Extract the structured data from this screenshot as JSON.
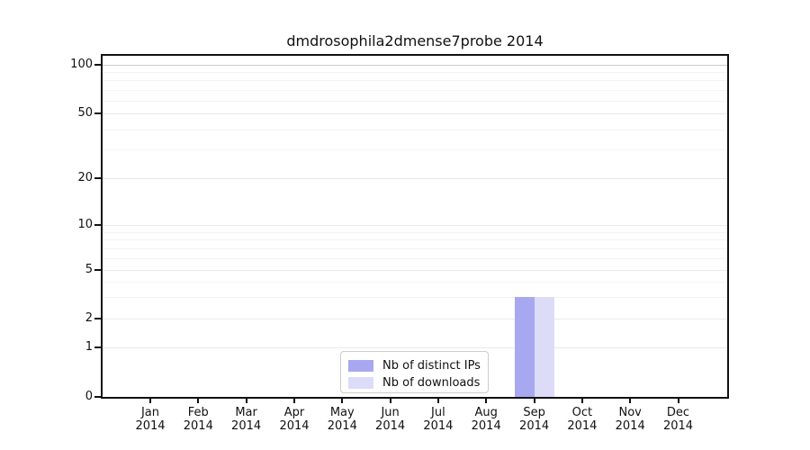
{
  "chart_data": {
    "type": "bar",
    "title": "dmdrosophila2dmense7probe 2014",
    "categories": [
      "Jan 2014",
      "Feb 2014",
      "Mar 2014",
      "Apr 2014",
      "May 2014",
      "Jun 2014",
      "Jul 2014",
      "Aug 2014",
      "Sep 2014",
      "Oct 2014",
      "Nov 2014",
      "Dec 2014"
    ],
    "series": [
      {
        "name": "Nb of distinct IPs",
        "color": "#a8a8f0",
        "values": [
          0,
          0,
          0,
          0,
          0,
          0,
          0,
          0,
          3,
          0,
          0,
          0
        ]
      },
      {
        "name": "Nb of downloads",
        "color": "#dcdcf8",
        "values": [
          0,
          0,
          0,
          0,
          0,
          0,
          0,
          0,
          3,
          0,
          0,
          0
        ]
      }
    ],
    "xlabel": "",
    "ylabel": "",
    "y_axis": {
      "ticks": [
        0,
        1,
        2,
        5,
        10,
        20,
        50,
        100
      ],
      "minor_gridlines": [
        3,
        4,
        6,
        7,
        8,
        9,
        30,
        40,
        60,
        70,
        80,
        90
      ],
      "range": [
        0,
        100
      ],
      "scale": "log-like (0,1,2,5,10,20,50,100)"
    },
    "grid": "horizontal major+minor",
    "legend_position": "inside bottom-center"
  },
  "colors": {
    "axis": "#111111",
    "text": "#111111",
    "grid_minor": "#f3f3f3",
    "grid_major": "#e9e9e9",
    "grid_top": "#c9c9c9",
    "legend_border": "#cccccc",
    "background": "#ffffff"
  }
}
